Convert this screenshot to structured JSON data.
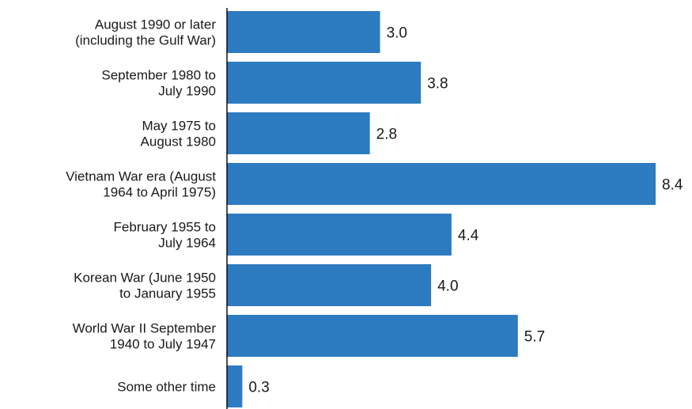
{
  "chart_data": {
    "type": "bar",
    "orientation": "horizontal",
    "categories": [
      [
        "August 1990 or later",
        "(including the Gulf War)"
      ],
      [
        "September 1980 to",
        "July 1990"
      ],
      [
        "May 1975 to",
        "August 1980"
      ],
      [
        "Vietnam War era (August",
        "1964 to April 1975)"
      ],
      [
        "February 1955 to",
        "July 1964"
      ],
      [
        "Korean War (June 1950",
        "to January 1955"
      ],
      [
        "World War II September",
        "1940 to July 1947"
      ],
      [
        "Some other time"
      ]
    ],
    "values": [
      3.0,
      3.8,
      2.8,
      8.4,
      4.4,
      4.0,
      5.7,
      0.3
    ],
    "data_labels": [
      "3.0",
      "3.8",
      "2.8",
      "8.4",
      "4.4",
      "4.0",
      "5.7",
      "0.3"
    ],
    "title": "",
    "xlabel": "",
    "ylabel": "",
    "xlim": [
      0,
      8.4
    ],
    "grid": false,
    "legend": "none",
    "bar_color": "#2d7bc0"
  }
}
